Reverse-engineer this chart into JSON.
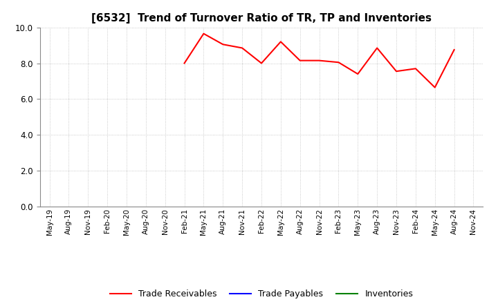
{
  "title": "[6532]  Trend of Turnover Ratio of TR, TP and Inventories",
  "ylim": [
    0.0,
    10.0
  ],
  "yticks": [
    0.0,
    2.0,
    4.0,
    6.0,
    8.0,
    10.0
  ],
  "x_labels": [
    "May-19",
    "Aug-19",
    "Nov-19",
    "Feb-20",
    "May-20",
    "Aug-20",
    "Nov-20",
    "Feb-21",
    "May-21",
    "Aug-21",
    "Nov-21",
    "Feb-22",
    "May-22",
    "Aug-22",
    "Nov-22",
    "Feb-23",
    "May-23",
    "Aug-23",
    "Nov-23",
    "Feb-24",
    "May-24",
    "Aug-24",
    "Nov-24"
  ],
  "trade_receivables": [
    null,
    null,
    null,
    null,
    null,
    null,
    null,
    8.0,
    9.65,
    9.05,
    8.85,
    8.0,
    9.2,
    8.15,
    8.15,
    8.05,
    7.4,
    8.85,
    7.55,
    7.7,
    6.65,
    8.75,
    null
  ],
  "trade_payables": [
    null,
    null,
    null,
    null,
    null,
    null,
    null,
    null,
    null,
    null,
    null,
    null,
    null,
    null,
    null,
    null,
    null,
    null,
    null,
    null,
    null,
    null,
    null
  ],
  "inventories": [
    null,
    null,
    null,
    null,
    null,
    null,
    null,
    null,
    null,
    null,
    null,
    null,
    null,
    null,
    null,
    null,
    null,
    null,
    null,
    null,
    null,
    null,
    null
  ],
  "tr_color": "#FF0000",
  "tp_color": "#0000FF",
  "inv_color": "#008000",
  "background_color": "#FFFFFF",
  "grid_color": "#BBBBBB",
  "legend_labels": [
    "Trade Receivables",
    "Trade Payables",
    "Inventories"
  ],
  "title_fontsize": 11,
  "tick_fontsize": 7.5,
  "legend_fontsize": 9
}
